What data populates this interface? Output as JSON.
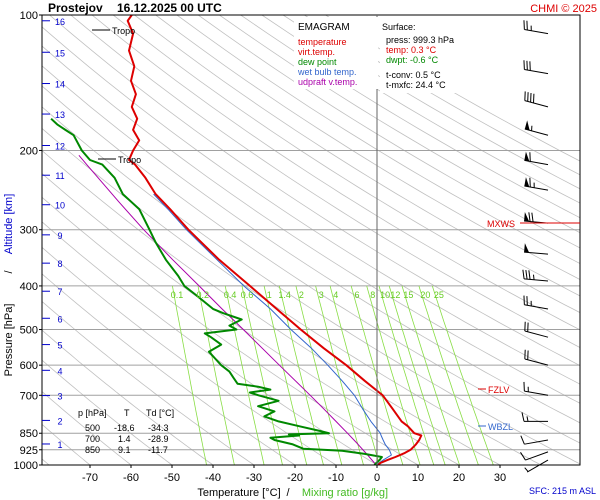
{
  "header": {
    "station": "Prostejov",
    "datetime": "16.12.2025 00 UTC",
    "credit": "CHMI © 2025"
  },
  "legend": {
    "title": "EMAGRAM",
    "items": [
      {
        "label": "temperature",
        "color": "#dd0000"
      },
      {
        "label": "virt.temp.",
        "color": "#dd0000"
      },
      {
        "label": "dew point",
        "color": "#008800"
      },
      {
        "label": "wet bulb temp.",
        "color": "#3366cc"
      },
      {
        "label": "udpraft v.temp.",
        "color": "#aa00aa"
      }
    ]
  },
  "surface": {
    "title": "Surface:",
    "press": "press: 999.3 hPa",
    "temp": "temp: 0.3 °C",
    "dwpt": "dwpt: -0.6 °C",
    "tconv": "t-conv: 0.5 °C",
    "tmxfc": "t-mxfc: 24.4 °C"
  },
  "levels_table": {
    "headers": [
      "p [hPa]",
      "T",
      "Td [°C]"
    ],
    "rows": [
      [
        "500",
        "-18.6",
        "-34.3"
      ],
      [
        "700",
        "1.4",
        "-28.9"
      ],
      [
        "850",
        "9.1",
        "-11.7"
      ]
    ]
  },
  "labels": {
    "tropo_upper": "Tropo",
    "tropo_lower": "Tropo",
    "mxws": "MXWS",
    "fzlv": "FZLV",
    "wbzl": "WBZL",
    "sfc": "SFC: 215 m ASL"
  },
  "axis_titles": {
    "y_pressure": "Pressure [hPa]",
    "y_sep": "/",
    "y_altitude": "Altitude [km]",
    "x_temp": "Temperature [°C]",
    "x_sep": "/",
    "x_mixing": "Mixing ratio [g/kg]"
  },
  "colors": {
    "temperature": "#dd0000",
    "dewpoint": "#008800",
    "wetbulb": "#3366cc",
    "parcel": "#aa00aa",
    "mixing": "#88dd44",
    "altitude": "#0000cc",
    "dry_adiabat": "#c0c0c0",
    "grid": "#a0a0a0"
  },
  "chart_data": {
    "type": "line",
    "diagram": "emagram",
    "pressure_ticks": [
      100,
      200,
      300,
      400,
      500,
      600,
      700,
      850,
      925,
      1000
    ],
    "pressure_range": [
      1000,
      100
    ],
    "temperature_ticks": [
      -70,
      -60,
      -50,
      -40,
      -30,
      -20,
      -10,
      0,
      10,
      20,
      30
    ],
    "altitude_ticks_km": [
      {
        "km": 1,
        "p": 898
      },
      {
        "km": 2,
        "p": 796
      },
      {
        "km": 3,
        "p": 701
      },
      {
        "km": 4,
        "p": 616
      },
      {
        "km": 5,
        "p": 540
      },
      {
        "km": 6,
        "p": 472
      },
      {
        "km": 7,
        "p": 411
      },
      {
        "km": 8,
        "p": 356
      },
      {
        "km": 9,
        "p": 308
      },
      {
        "km": 10,
        "p": 264
      },
      {
        "km": 11,
        "p": 227
      },
      {
        "km": 12,
        "p": 195
      },
      {
        "km": 13,
        "p": 166
      },
      {
        "km": 14,
        "p": 142
      },
      {
        "km": 15,
        "p": 121
      },
      {
        "km": 16,
        "p": 103
      }
    ],
    "mixing_ratio_labels": [
      "0.1",
      "0.2",
      "0.4",
      "0.6",
      "1",
      "1.4",
      "2",
      "3",
      "4",
      "6",
      "8",
      "10",
      "12",
      "15",
      "20",
      "25"
    ],
    "temperature": [
      [
        1000,
        0.3
      ],
      [
        990,
        0.8
      ],
      [
        975,
        2.5
      ],
      [
        960,
        4.5
      ],
      [
        940,
        6.8
      ],
      [
        925,
        8.2
      ],
      [
        900,
        9.5
      ],
      [
        880,
        10.3
      ],
      [
        860,
        10.8
      ],
      [
        850,
        9.1
      ],
      [
        820,
        7.5
      ],
      [
        800,
        6.0
      ],
      [
        750,
        3.8
      ],
      [
        700,
        1.4
      ],
      [
        650,
        -3.0
      ],
      [
        600,
        -7.5
      ],
      [
        550,
        -13.0
      ],
      [
        500,
        -18.6
      ],
      [
        450,
        -24.5
      ],
      [
        400,
        -31.0
      ],
      [
        350,
        -38.5
      ],
      [
        300,
        -46.0
      ],
      [
        270,
        -50.5
      ],
      [
        250,
        -54.0
      ],
      [
        230,
        -56.5
      ],
      [
        215,
        -59.0
      ],
      [
        210,
        -60.5
      ],
      [
        205,
        -60.0
      ],
      [
        200,
        -59.5
      ],
      [
        190,
        -58.0
      ],
      [
        180,
        -59.5
      ],
      [
        170,
        -58.5
      ],
      [
        160,
        -59.8
      ],
      [
        150,
        -58.8
      ],
      [
        140,
        -60.0
      ],
      [
        130,
        -59.2
      ],
      [
        120,
        -60.5
      ],
      [
        110,
        -59.5
      ],
      [
        103,
        -60.8
      ],
      [
        100,
        -59.8
      ]
    ],
    "dewpoint": [
      [
        1000,
        -0.6
      ],
      [
        990,
        -0.2
      ],
      [
        975,
        0.6
      ],
      [
        960,
        1.2
      ],
      [
        945,
        -3.0
      ],
      [
        930,
        -8.5
      ],
      [
        920,
        -18.0
      ],
      [
        900,
        -20.5
      ],
      [
        880,
        -25.0
      ],
      [
        870,
        -26.0
      ],
      [
        860,
        -19.0
      ],
      [
        855,
        -21.5
      ],
      [
        850,
        -11.7
      ],
      [
        840,
        -14.0
      ],
      [
        820,
        -19.0
      ],
      [
        800,
        -24.0
      ],
      [
        780,
        -27.5
      ],
      [
        760,
        -25.0
      ],
      [
        740,
        -29.0
      ],
      [
        720,
        -24.0
      ],
      [
        700,
        -28.9
      ],
      [
        690,
        -31.0
      ],
      [
        680,
        -26.0
      ],
      [
        670,
        -29.0
      ],
      [
        660,
        -34.0
      ],
      [
        640,
        -35.0
      ],
      [
        620,
        -36.0
      ],
      [
        600,
        -38.0
      ],
      [
        580,
        -39.5
      ],
      [
        560,
        -41.0
      ],
      [
        540,
        -38.0
      ],
      [
        520,
        -40.5
      ],
      [
        510,
        -42.0
      ],
      [
        500,
        -34.3
      ],
      [
        490,
        -36.0
      ],
      [
        475,
        -33.0
      ],
      [
        460,
        -37.5
      ],
      [
        450,
        -40.0
      ],
      [
        420,
        -44.0
      ],
      [
        400,
        -47.0
      ],
      [
        380,
        -48.5
      ],
      [
        350,
        -51.5
      ],
      [
        320,
        -54.0
      ],
      [
        300,
        -55.5
      ],
      [
        270,
        -58.0
      ],
      [
        250,
        -62.0
      ],
      [
        230,
        -64.0
      ],
      [
        215,
        -67.0
      ],
      [
        210,
        -70.0
      ],
      [
        200,
        -72.0
      ],
      [
        185,
        -74.0
      ],
      [
        180,
        -76.0
      ],
      [
        175,
        -78.0
      ],
      [
        170,
        -79.5
      ]
    ],
    "wetbulb": [
      [
        1000,
        -0.2
      ],
      [
        975,
        1.5
      ],
      [
        950,
        3.5
      ],
      [
        925,
        3.0
      ],
      [
        900,
        2.0
      ],
      [
        880,
        1.5
      ],
      [
        860,
        1.0
      ],
      [
        850,
        0.8
      ],
      [
        800,
        -1.5
      ],
      [
        750,
        -3.5
      ],
      [
        700,
        -5.5
      ],
      [
        650,
        -8.5
      ],
      [
        600,
        -12.0
      ],
      [
        550,
        -16.0
      ],
      [
        500,
        -21.0
      ],
      [
        450,
        -26.0
      ],
      [
        400,
        -32.5
      ],
      [
        350,
        -39.0
      ],
      [
        300,
        -46.5
      ],
      [
        270,
        -51.0
      ],
      [
        250,
        -54.5
      ]
    ],
    "parcel": [
      [
        1000,
        -0.2
      ],
      [
        950,
        -2.3
      ],
      [
        900,
        -4.6
      ],
      [
        850,
        -7.2
      ],
      [
        800,
        -10.0
      ],
      [
        750,
        -13.0
      ],
      [
        700,
        -16.3
      ],
      [
        650,
        -19.9
      ],
      [
        600,
        -23.8
      ],
      [
        550,
        -28.0
      ],
      [
        500,
        -32.6
      ],
      [
        450,
        -37.8
      ],
      [
        400,
        -43.4
      ],
      [
        350,
        -49.8
      ],
      [
        300,
        -56.9
      ],
      [
        260,
        -63.0
      ],
      [
        215,
        -70.8
      ],
      [
        205,
        -72.7
      ]
    ],
    "winds": [
      {
        "p": 110,
        "dir": 280,
        "spd": 25
      },
      {
        "p": 135,
        "dir": 280,
        "spd": 30
      },
      {
        "p": 160,
        "dir": 285,
        "spd": 40
      },
      {
        "p": 185,
        "dir": 285,
        "spd": 55
      },
      {
        "p": 215,
        "dir": 280,
        "spd": 60
      },
      {
        "p": 245,
        "dir": 280,
        "spd": 65
      },
      {
        "p": 290,
        "dir": 275,
        "spd": 70
      },
      {
        "p": 340,
        "dir": 275,
        "spd": 50
      },
      {
        "p": 390,
        "dir": 275,
        "spd": 35
      },
      {
        "p": 450,
        "dir": 280,
        "spd": 25
      },
      {
        "p": 520,
        "dir": 285,
        "spd": 20
      },
      {
        "p": 600,
        "dir": 285,
        "spd": 20
      },
      {
        "p": 700,
        "dir": 280,
        "spd": 15
      },
      {
        "p": 800,
        "dir": 270,
        "spd": 15
      },
      {
        "p": 880,
        "dir": 260,
        "spd": 10
      },
      {
        "p": 935,
        "dir": 250,
        "spd": 10
      },
      {
        "p": 975,
        "dir": 240,
        "spd": 5
      }
    ]
  }
}
